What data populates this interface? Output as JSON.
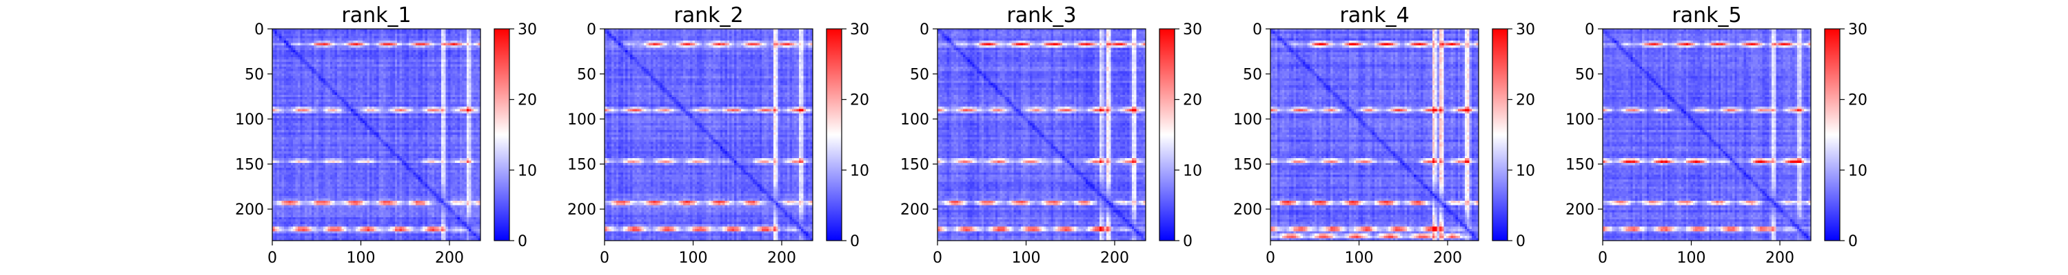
{
  "chart_data": [
    {
      "type": "heatmap",
      "title": "rank_1",
      "x_ticks": [
        "0",
        "100",
        "200"
      ],
      "y_ticks": [
        "0",
        "50",
        "100",
        "150",
        "200"
      ],
      "x_tick_values": [
        0,
        100,
        200
      ],
      "y_tick_values": [
        0,
        50,
        100,
        150,
        200
      ],
      "colorbar_ticks": [
        "0",
        "10",
        "20",
        "30"
      ],
      "colorbar_tick_values": [
        0,
        10,
        20,
        30
      ],
      "value_range": [
        0,
        30
      ],
      "matrix_size": 235,
      "colormap": [
        "#0000ff",
        "#ffffff",
        "#ff0000"
      ],
      "features": {
        "diagonal": true,
        "bright_rows": [
          {
            "index": 17,
            "strength": 0.85
          },
          {
            "index": 90,
            "strength": 0.7
          },
          {
            "index": 147,
            "strength": 0.45
          },
          {
            "index": 193,
            "strength": 0.95
          },
          {
            "index": 222,
            "strength": 1.0
          }
        ],
        "bright_cols": [
          {
            "index": 193,
            "strength": 0.55
          },
          {
            "index": 222,
            "strength": 0.55
          }
        ]
      }
    },
    {
      "type": "heatmap",
      "title": "rank_2",
      "x_ticks": [
        "0",
        "100",
        "200"
      ],
      "y_ticks": [
        "0",
        "50",
        "100",
        "150",
        "200"
      ],
      "x_tick_values": [
        0,
        100,
        200
      ],
      "y_tick_values": [
        0,
        50,
        100,
        150,
        200
      ],
      "colorbar_ticks": [
        "0",
        "10",
        "20",
        "30"
      ],
      "colorbar_tick_values": [
        0,
        10,
        20,
        30
      ],
      "value_range": [
        0,
        30
      ],
      "matrix_size": 235,
      "colormap": [
        "#0000ff",
        "#ffffff",
        "#ff0000"
      ],
      "features": {
        "diagonal": true,
        "bright_rows": [
          {
            "index": 17,
            "strength": 0.85
          },
          {
            "index": 90,
            "strength": 0.7
          },
          {
            "index": 147,
            "strength": 0.65
          },
          {
            "index": 193,
            "strength": 0.95
          },
          {
            "index": 222,
            "strength": 1.0
          }
        ],
        "bright_cols": [
          {
            "index": 193,
            "strength": 0.65
          },
          {
            "index": 222,
            "strength": 0.55
          }
        ]
      }
    },
    {
      "type": "heatmap",
      "title": "rank_3",
      "x_ticks": [
        "0",
        "100",
        "200"
      ],
      "y_ticks": [
        "0",
        "50",
        "100",
        "150",
        "200"
      ],
      "x_tick_values": [
        0,
        100,
        200
      ],
      "y_tick_values": [
        0,
        50,
        100,
        150,
        200
      ],
      "colorbar_ticks": [
        "0",
        "10",
        "20",
        "30"
      ],
      "colorbar_tick_values": [
        0,
        10,
        20,
        30
      ],
      "value_range": [
        0,
        30
      ],
      "matrix_size": 235,
      "colormap": [
        "#0000ff",
        "#ffffff",
        "#ff0000"
      ],
      "features": {
        "diagonal": true,
        "bright_rows": [
          {
            "index": 17,
            "strength": 0.9
          },
          {
            "index": 90,
            "strength": 0.75
          },
          {
            "index": 147,
            "strength": 0.7
          },
          {
            "index": 193,
            "strength": 0.95
          },
          {
            "index": 222,
            "strength": 1.0
          }
        ],
        "bright_cols": [
          {
            "index": 185,
            "strength": 0.5
          },
          {
            "index": 193,
            "strength": 0.75
          },
          {
            "index": 222,
            "strength": 0.6
          }
        ]
      }
    },
    {
      "type": "heatmap",
      "title": "rank_4",
      "x_ticks": [
        "0",
        "100",
        "200"
      ],
      "y_ticks": [
        "0",
        "50",
        "100",
        "150",
        "200"
      ],
      "x_tick_values": [
        0,
        100,
        200
      ],
      "y_tick_values": [
        0,
        50,
        100,
        150,
        200
      ],
      "colorbar_ticks": [
        "0",
        "10",
        "20",
        "30"
      ],
      "colorbar_tick_values": [
        0,
        10,
        20,
        30
      ],
      "value_range": [
        0,
        30
      ],
      "matrix_size": 235,
      "colormap": [
        "#0000ff",
        "#ffffff",
        "#ff0000"
      ],
      "features": {
        "diagonal": true,
        "bright_rows": [
          {
            "index": 17,
            "strength": 0.95
          },
          {
            "index": 90,
            "strength": 0.8
          },
          {
            "index": 147,
            "strength": 0.75
          },
          {
            "index": 193,
            "strength": 1.0
          },
          {
            "index": 222,
            "strength": 1.0
          },
          {
            "index": 230,
            "strength": 0.9
          }
        ],
        "bright_cols": [
          {
            "index": 185,
            "strength": 0.75
          },
          {
            "index": 193,
            "strength": 0.8
          },
          {
            "index": 222,
            "strength": 0.7
          }
        ]
      }
    },
    {
      "type": "heatmap",
      "title": "rank_5",
      "x_ticks": [
        "0",
        "100",
        "200"
      ],
      "y_ticks": [
        "0",
        "50",
        "100",
        "150",
        "200"
      ],
      "x_tick_values": [
        0,
        100,
        200
      ],
      "y_tick_values": [
        0,
        50,
        100,
        150,
        200
      ],
      "colorbar_ticks": [
        "0",
        "10",
        "20",
        "30"
      ],
      "colorbar_tick_values": [
        0,
        10,
        20,
        30
      ],
      "value_range": [
        0,
        30
      ],
      "matrix_size": 235,
      "colormap": [
        "#0000ff",
        "#ffffff",
        "#ff0000"
      ],
      "features": {
        "diagonal": true,
        "bright_rows": [
          {
            "index": 17,
            "strength": 0.85
          },
          {
            "index": 90,
            "strength": 0.7
          },
          {
            "index": 147,
            "strength": 1.0
          },
          {
            "index": 193,
            "strength": 0.75
          },
          {
            "index": 222,
            "strength": 0.95
          }
        ],
        "bright_cols": [
          {
            "index": 193,
            "strength": 0.55
          },
          {
            "index": 222,
            "strength": 0.55
          }
        ]
      }
    }
  ]
}
